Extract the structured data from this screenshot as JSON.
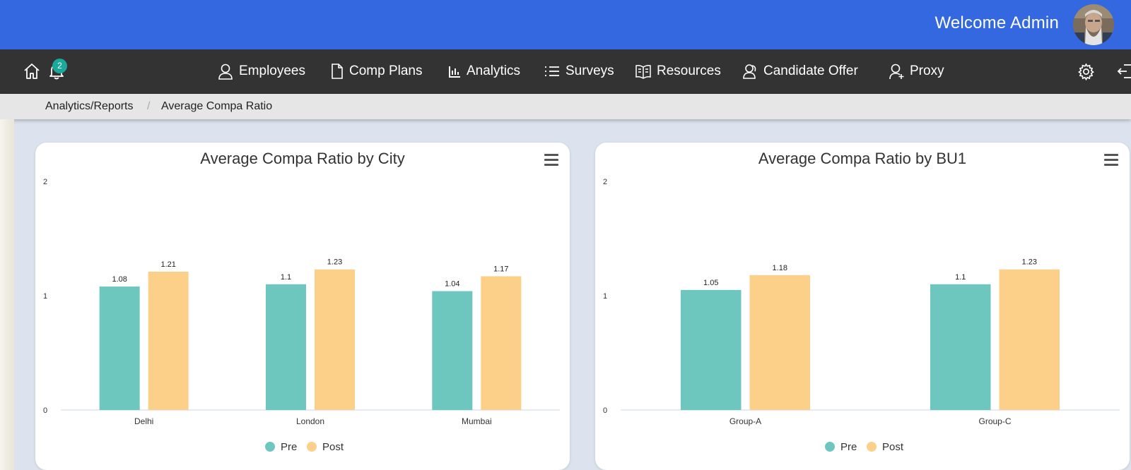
{
  "header": {
    "welcome_text": "Welcome Admin"
  },
  "nav": {
    "notification_count": "2",
    "items": [
      {
        "label": "Employees",
        "icon": "user-icon"
      },
      {
        "label": "Comp Plans",
        "icon": "document-icon"
      },
      {
        "label": "Analytics",
        "icon": "bar-chart-icon"
      },
      {
        "label": "Surveys",
        "icon": "list-icon"
      },
      {
        "label": "Resources",
        "icon": "book-icon"
      },
      {
        "label": "Candidate Offer",
        "icon": "users-icon"
      },
      {
        "label": "Proxy",
        "icon": "user-plus-icon"
      }
    ]
  },
  "breadcrumb": {
    "parent": "Analytics/Reports",
    "separator": "/",
    "current": "Average Compa Ratio"
  },
  "colors": {
    "topbar": "#3468e0",
    "navbar": "#333333",
    "pre": "#6ec7bf",
    "post": "#fdd08a"
  },
  "chart_data": [
    {
      "type": "bar",
      "title": "Average Compa Ratio by City",
      "categories": [
        "Delhi",
        "London",
        "Mumbai"
      ],
      "series": [
        {
          "name": "Pre",
          "values": [
            1.08,
            1.1,
            1.04
          ]
        },
        {
          "name": "Post",
          "values": [
            1.21,
            1.23,
            1.17
          ]
        }
      ],
      "data_labels": [
        [
          "1.08",
          "1.1",
          "1.04"
        ],
        [
          "1.21",
          "1.23",
          "1.17"
        ]
      ],
      "yticks": [
        "0",
        "1",
        "2"
      ],
      "ylim": [
        0,
        2
      ],
      "legend": "bottom-center",
      "grid": false
    },
    {
      "type": "bar",
      "title": "Average Compa Ratio by BU1",
      "categories": [
        "Group-A",
        "Group-C"
      ],
      "series": [
        {
          "name": "Pre",
          "values": [
            1.05,
            1.1
          ]
        },
        {
          "name": "Post",
          "values": [
            1.18,
            1.23
          ]
        }
      ],
      "data_labels": [
        [
          "1.05",
          "1.1"
        ],
        [
          "1.18",
          "1.23"
        ]
      ],
      "yticks": [
        "0",
        "1",
        "2"
      ],
      "ylim": [
        0,
        2
      ],
      "legend": "bottom-center",
      "grid": false
    }
  ]
}
